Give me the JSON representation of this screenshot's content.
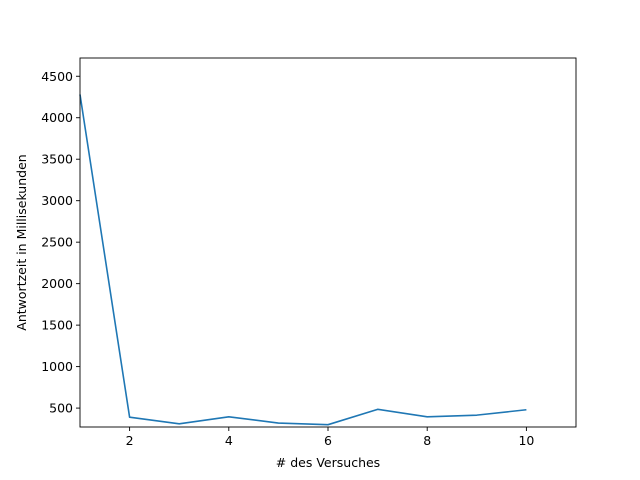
{
  "chart_data": {
    "type": "line",
    "title": "",
    "xlabel": "# des Versuches",
    "ylabel": "Antwortzeit in Millisekunden",
    "x": [
      1,
      2,
      3,
      4,
      5,
      6,
      7,
      8,
      9,
      10
    ],
    "series": [
      {
        "values": [
          4280,
          390,
          310,
          395,
          320,
          300,
          485,
          395,
          415,
          480
        ],
        "color": "#1f77b4"
      }
    ],
    "xlim": [
      1,
      11
    ],
    "ylim": [
      272,
      4720
    ],
    "xticks": [
      2,
      4,
      6,
      8,
      10
    ],
    "yticks": [
      500,
      1000,
      1500,
      2000,
      2500,
      3000,
      3500,
      4000,
      4500
    ],
    "grid": false,
    "legend": "none"
  }
}
